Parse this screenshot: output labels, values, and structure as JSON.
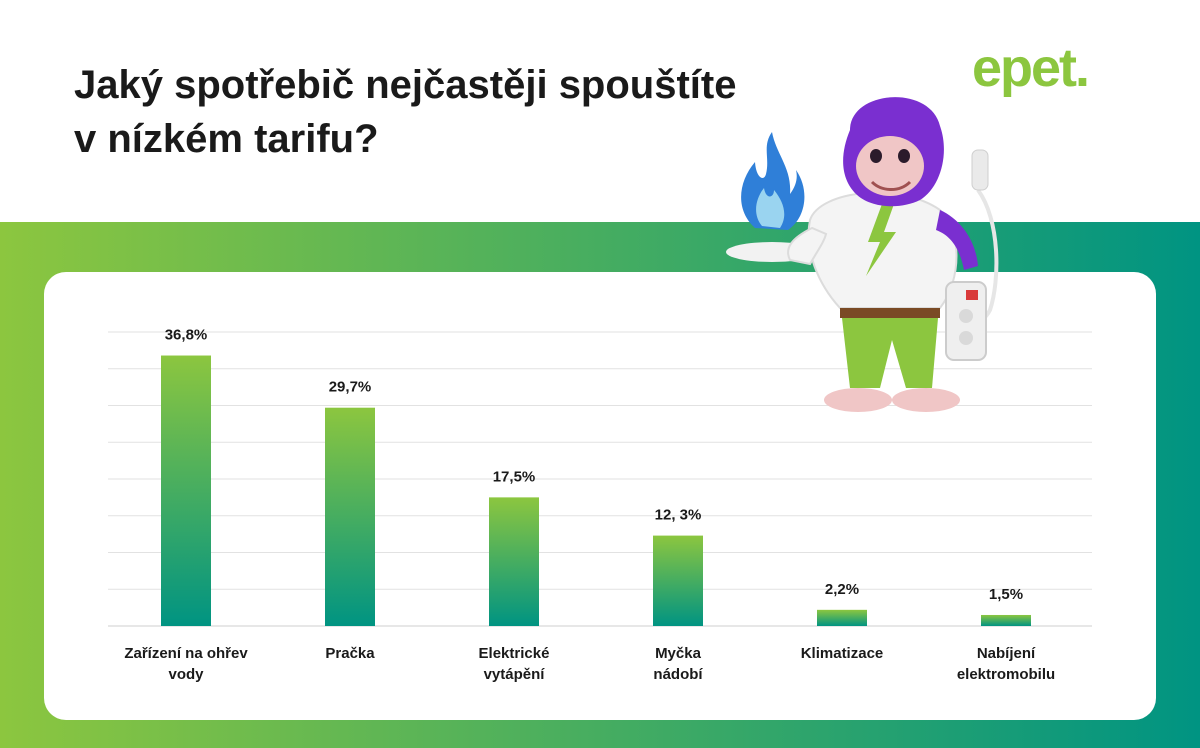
{
  "header": {
    "title": "Jaký spotřebič nejčastěji spouštíte\nv nízkém tarifu?"
  },
  "brand": {
    "logo_text": "epet.",
    "green": "#8cc63f",
    "teal": "#009482"
  },
  "mascot": {
    "icon": "gorilla-mascot-icon"
  },
  "chart_data": {
    "type": "bar",
    "title": "",
    "xlabel": "",
    "ylabel": "",
    "ylim": [
      0,
      40
    ],
    "grid": true,
    "categories": [
      [
        "Zařízení na ohřev",
        "vody"
      ],
      [
        "Pračka"
      ],
      [
        "Elektrické",
        "vytápění"
      ],
      [
        "Myčka",
        "nádobí"
      ],
      [
        "Klimatizace"
      ],
      [
        "Nabíjení",
        "elektromobilu"
      ]
    ],
    "values": [
      36.8,
      29.7,
      17.5,
      12.3,
      2.2,
      1.5
    ],
    "value_labels": [
      "36,8%",
      "29,7%",
      "17,5%",
      "12, 3%",
      "2,2%",
      "1,5%"
    ]
  }
}
